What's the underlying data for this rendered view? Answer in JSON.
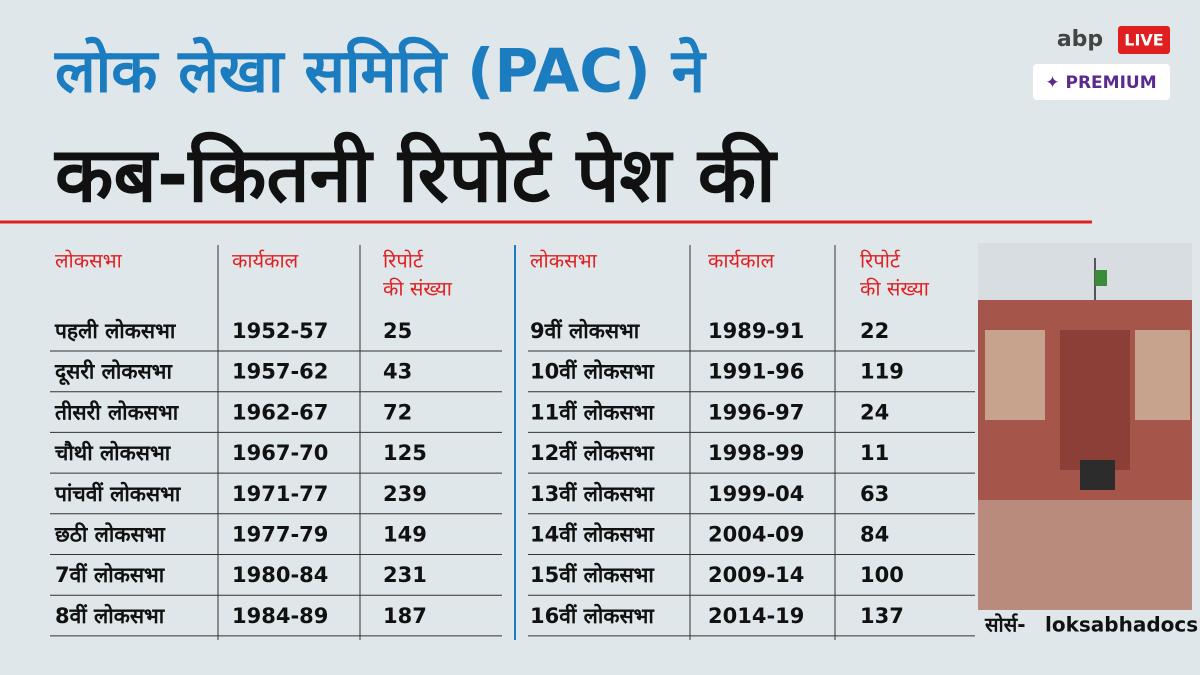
{
  "header": {
    "title_line1": "लोक लेखा समिति (PAC) ने",
    "title_line2": "कब-कितनी रिपोर्ट पेश की"
  },
  "logo": {
    "brand": "abp",
    "live": "LIVE",
    "premium": "✦ PREMIUM"
  },
  "tables": [
    {
      "columns": [
        [
          "लोकसभा"
        ],
        [
          "कार्यकाल"
        ],
        [
          "रिपोर्ट",
          "की संख्या"
        ]
      ],
      "rows": [
        [
          "पहली लोकसभा",
          "1952-57",
          25
        ],
        [
          "दूसरी लोकसभा",
          "1957-62",
          43
        ],
        [
          "तीसरी लोकसभा",
          "1962-67",
          72
        ],
        [
          "चौथी लोकसभा",
          "1967-70",
          125
        ],
        [
          "पांचवीं लोकसभा",
          "1971-77",
          239
        ],
        [
          "छठी लोकसभा",
          "1977-79",
          149
        ],
        [
          "7वीं लोकसभा",
          "1980-84",
          231
        ],
        [
          "8वीं लोकसभा",
          "1984-89",
          187
        ]
      ]
    },
    {
      "columns": [
        [
          "लोकसभा"
        ],
        [
          "कार्यकाल"
        ],
        [
          "रिपोर्ट",
          "की संख्या"
        ]
      ],
      "rows": [
        [
          "9वीं लोकसभा",
          "1989-91",
          22
        ],
        [
          "10वीं लोकसभा",
          "1991-96",
          119
        ],
        [
          "11वीं लोकसभा",
          "1996-97",
          24
        ],
        [
          "12वीं लोकसभा",
          "1998-99",
          11
        ],
        [
          "13वीं लोकसभा",
          "1999-04",
          63
        ],
        [
          "14वीं लोकसभा",
          "2004-09",
          84
        ],
        [
          "15वीं लोकसभा",
          "2009-14",
          100
        ],
        [
          "16वीं लोकसभा",
          "2014-19",
          137
        ]
      ]
    }
  ],
  "source": {
    "label": "सोर्स-",
    "value": "loksabhadocs"
  }
}
